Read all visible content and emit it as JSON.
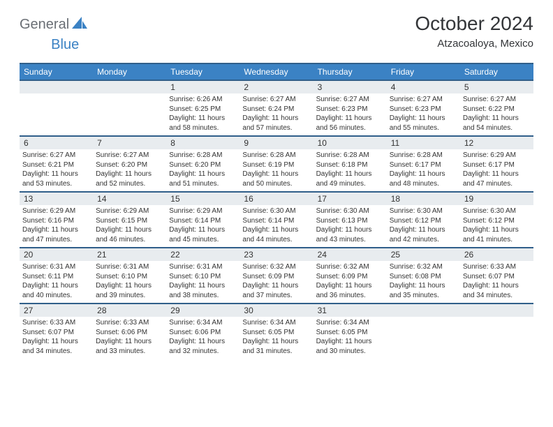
{
  "logo": {
    "text_general": "General",
    "text_blue": "Blue",
    "icon_color": "#3b82c4"
  },
  "title": "October 2024",
  "location": "Atzacoaloya, Mexico",
  "colors": {
    "header_bg": "#3b82c4",
    "header_border": "#305f8a",
    "daynum_bg": "#e8ecef",
    "text": "#333538",
    "logo_gray": "#6a6f75"
  },
  "weekdays": [
    "Sunday",
    "Monday",
    "Tuesday",
    "Wednesday",
    "Thursday",
    "Friday",
    "Saturday"
  ],
  "weeks": [
    [
      {
        "n": "",
        "sunrise": "",
        "sunset": "",
        "daylight": ""
      },
      {
        "n": "",
        "sunrise": "",
        "sunset": "",
        "daylight": ""
      },
      {
        "n": "1",
        "sunrise": "Sunrise: 6:26 AM",
        "sunset": "Sunset: 6:25 PM",
        "daylight": "Daylight: 11 hours and 58 minutes."
      },
      {
        "n": "2",
        "sunrise": "Sunrise: 6:27 AM",
        "sunset": "Sunset: 6:24 PM",
        "daylight": "Daylight: 11 hours and 57 minutes."
      },
      {
        "n": "3",
        "sunrise": "Sunrise: 6:27 AM",
        "sunset": "Sunset: 6:23 PM",
        "daylight": "Daylight: 11 hours and 56 minutes."
      },
      {
        "n": "4",
        "sunrise": "Sunrise: 6:27 AM",
        "sunset": "Sunset: 6:23 PM",
        "daylight": "Daylight: 11 hours and 55 minutes."
      },
      {
        "n": "5",
        "sunrise": "Sunrise: 6:27 AM",
        "sunset": "Sunset: 6:22 PM",
        "daylight": "Daylight: 11 hours and 54 minutes."
      }
    ],
    [
      {
        "n": "6",
        "sunrise": "Sunrise: 6:27 AM",
        "sunset": "Sunset: 6:21 PM",
        "daylight": "Daylight: 11 hours and 53 minutes."
      },
      {
        "n": "7",
        "sunrise": "Sunrise: 6:27 AM",
        "sunset": "Sunset: 6:20 PM",
        "daylight": "Daylight: 11 hours and 52 minutes."
      },
      {
        "n": "8",
        "sunrise": "Sunrise: 6:28 AM",
        "sunset": "Sunset: 6:20 PM",
        "daylight": "Daylight: 11 hours and 51 minutes."
      },
      {
        "n": "9",
        "sunrise": "Sunrise: 6:28 AM",
        "sunset": "Sunset: 6:19 PM",
        "daylight": "Daylight: 11 hours and 50 minutes."
      },
      {
        "n": "10",
        "sunrise": "Sunrise: 6:28 AM",
        "sunset": "Sunset: 6:18 PM",
        "daylight": "Daylight: 11 hours and 49 minutes."
      },
      {
        "n": "11",
        "sunrise": "Sunrise: 6:28 AM",
        "sunset": "Sunset: 6:17 PM",
        "daylight": "Daylight: 11 hours and 48 minutes."
      },
      {
        "n": "12",
        "sunrise": "Sunrise: 6:29 AM",
        "sunset": "Sunset: 6:17 PM",
        "daylight": "Daylight: 11 hours and 47 minutes."
      }
    ],
    [
      {
        "n": "13",
        "sunrise": "Sunrise: 6:29 AM",
        "sunset": "Sunset: 6:16 PM",
        "daylight": "Daylight: 11 hours and 47 minutes."
      },
      {
        "n": "14",
        "sunrise": "Sunrise: 6:29 AM",
        "sunset": "Sunset: 6:15 PM",
        "daylight": "Daylight: 11 hours and 46 minutes."
      },
      {
        "n": "15",
        "sunrise": "Sunrise: 6:29 AM",
        "sunset": "Sunset: 6:14 PM",
        "daylight": "Daylight: 11 hours and 45 minutes."
      },
      {
        "n": "16",
        "sunrise": "Sunrise: 6:30 AM",
        "sunset": "Sunset: 6:14 PM",
        "daylight": "Daylight: 11 hours and 44 minutes."
      },
      {
        "n": "17",
        "sunrise": "Sunrise: 6:30 AM",
        "sunset": "Sunset: 6:13 PM",
        "daylight": "Daylight: 11 hours and 43 minutes."
      },
      {
        "n": "18",
        "sunrise": "Sunrise: 6:30 AM",
        "sunset": "Sunset: 6:12 PM",
        "daylight": "Daylight: 11 hours and 42 minutes."
      },
      {
        "n": "19",
        "sunrise": "Sunrise: 6:30 AM",
        "sunset": "Sunset: 6:12 PM",
        "daylight": "Daylight: 11 hours and 41 minutes."
      }
    ],
    [
      {
        "n": "20",
        "sunrise": "Sunrise: 6:31 AM",
        "sunset": "Sunset: 6:11 PM",
        "daylight": "Daylight: 11 hours and 40 minutes."
      },
      {
        "n": "21",
        "sunrise": "Sunrise: 6:31 AM",
        "sunset": "Sunset: 6:10 PM",
        "daylight": "Daylight: 11 hours and 39 minutes."
      },
      {
        "n": "22",
        "sunrise": "Sunrise: 6:31 AM",
        "sunset": "Sunset: 6:10 PM",
        "daylight": "Daylight: 11 hours and 38 minutes."
      },
      {
        "n": "23",
        "sunrise": "Sunrise: 6:32 AM",
        "sunset": "Sunset: 6:09 PM",
        "daylight": "Daylight: 11 hours and 37 minutes."
      },
      {
        "n": "24",
        "sunrise": "Sunrise: 6:32 AM",
        "sunset": "Sunset: 6:09 PM",
        "daylight": "Daylight: 11 hours and 36 minutes."
      },
      {
        "n": "25",
        "sunrise": "Sunrise: 6:32 AM",
        "sunset": "Sunset: 6:08 PM",
        "daylight": "Daylight: 11 hours and 35 minutes."
      },
      {
        "n": "26",
        "sunrise": "Sunrise: 6:33 AM",
        "sunset": "Sunset: 6:07 PM",
        "daylight": "Daylight: 11 hours and 34 minutes."
      }
    ],
    [
      {
        "n": "27",
        "sunrise": "Sunrise: 6:33 AM",
        "sunset": "Sunset: 6:07 PM",
        "daylight": "Daylight: 11 hours and 34 minutes."
      },
      {
        "n": "28",
        "sunrise": "Sunrise: 6:33 AM",
        "sunset": "Sunset: 6:06 PM",
        "daylight": "Daylight: 11 hours and 33 minutes."
      },
      {
        "n": "29",
        "sunrise": "Sunrise: 6:34 AM",
        "sunset": "Sunset: 6:06 PM",
        "daylight": "Daylight: 11 hours and 32 minutes."
      },
      {
        "n": "30",
        "sunrise": "Sunrise: 6:34 AM",
        "sunset": "Sunset: 6:05 PM",
        "daylight": "Daylight: 11 hours and 31 minutes."
      },
      {
        "n": "31",
        "sunrise": "Sunrise: 6:34 AM",
        "sunset": "Sunset: 6:05 PM",
        "daylight": "Daylight: 11 hours and 30 minutes."
      },
      {
        "n": "",
        "sunrise": "",
        "sunset": "",
        "daylight": ""
      },
      {
        "n": "",
        "sunrise": "",
        "sunset": "",
        "daylight": ""
      }
    ]
  ]
}
